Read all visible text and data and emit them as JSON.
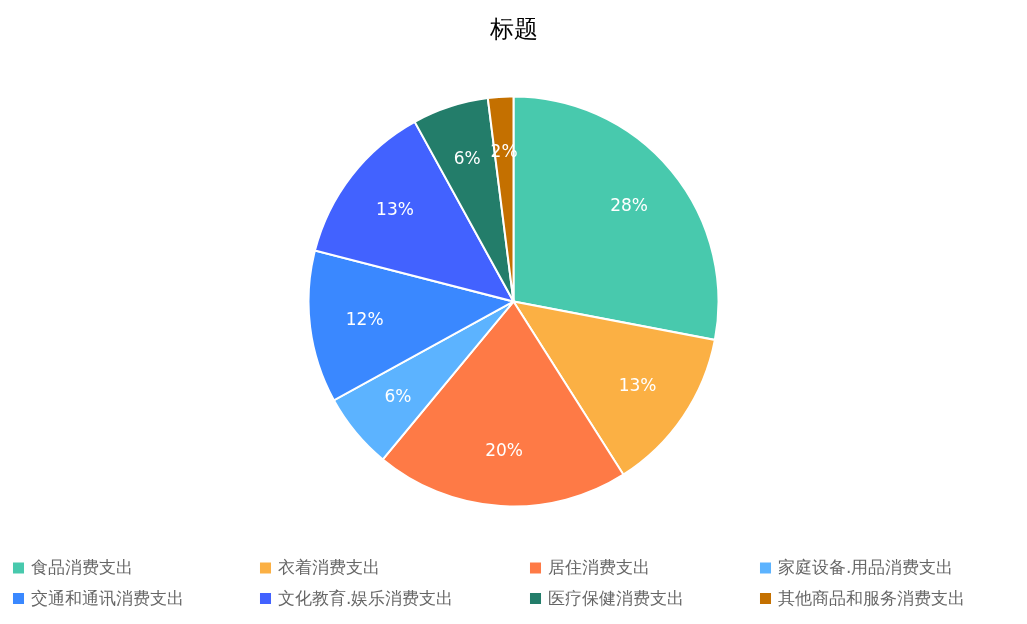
{
  "chart_data": {
    "type": "pie",
    "title": "标题",
    "categories": [
      "食品消费支出",
      "衣着消费支出",
      "居住消费支出",
      "家庭设备.用品消费支出",
      "交通和通讯消费支出",
      "文化教育.娱乐消费支出",
      "医疗保健消费支出",
      "其他商品和服务消费支出"
    ],
    "values": [
      28,
      13,
      20,
      6,
      12,
      13,
      6,
      2
    ],
    "value_labels": [
      "28%",
      "13%",
      "20%",
      "6%",
      "12%",
      "13%",
      "6%",
      "2%"
    ],
    "colors": [
      "#48c9ad",
      "#fbb044",
      "#fe7a46",
      "#5cb3ff",
      "#3a88ff",
      "#4262ff",
      "#237d6a",
      "#c47000"
    ],
    "legend": "bottom"
  }
}
